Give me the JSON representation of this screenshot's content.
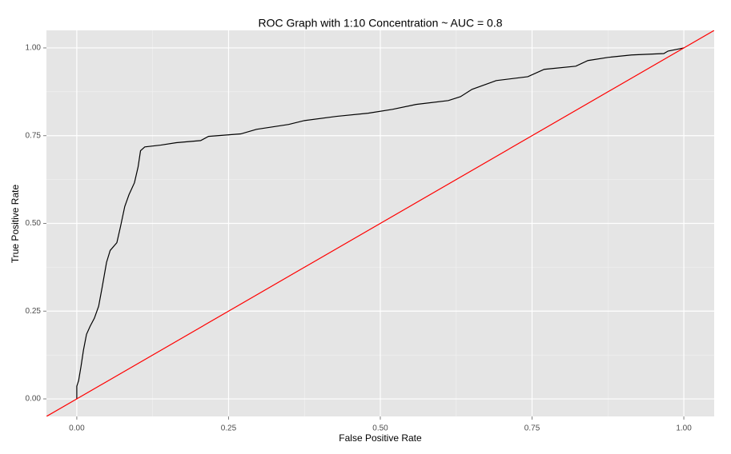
{
  "chart_data": {
    "type": "line",
    "title": "ROC Graph with 1:10 Concentration ~ AUC =  0.8",
    "x_label": "False Positive Rate",
    "y_label": "True Positive Rate",
    "xlim": [
      -0.05,
      1.05
    ],
    "ylim": [
      -0.05,
      1.05
    ],
    "xticks": [
      {
        "value": 0,
        "label": "0.00"
      },
      {
        "value": 0.25,
        "label": "0.25"
      },
      {
        "value": 0.5,
        "label": "0.50"
      },
      {
        "value": 0.75,
        "label": "0.75"
      },
      {
        "value": 1,
        "label": "1.00"
      }
    ],
    "yticks": [
      {
        "value": 0,
        "label": "0.00"
      },
      {
        "value": 0.25,
        "label": "0.25"
      },
      {
        "value": 0.5,
        "label": "0.50"
      },
      {
        "value": 0.75,
        "label": "0.75"
      },
      {
        "value": 1,
        "label": "1.00"
      }
    ],
    "grid": true,
    "minor_grid": true,
    "series": [
      {
        "color": "#000000",
        "x": [
          0,
          0,
          0.003,
          0.007,
          0.011,
          0.016,
          0.022,
          0.029,
          0.036,
          0.042,
          0.049,
          0.055,
          0.066,
          0.072,
          0.079,
          0.086,
          0.095,
          0.101,
          0.105,
          0.112,
          0.138,
          0.164,
          0.204,
          0.217,
          0.27,
          0.296,
          0.349,
          0.375,
          0.428,
          0.48,
          0.52,
          0.559,
          0.612,
          0.632,
          0.651,
          0.691,
          0.743,
          0.77,
          0.822,
          0.842,
          0.875,
          0.914,
          0.967,
          0.974,
          1
        ],
        "values": [
          0,
          0.036,
          0.052,
          0.093,
          0.139,
          0.184,
          0.207,
          0.23,
          0.264,
          0.32,
          0.389,
          0.423,
          0.445,
          0.491,
          0.548,
          0.582,
          0.616,
          0.661,
          0.707,
          0.718,
          0.723,
          0.73,
          0.736,
          0.748,
          0.755,
          0.768,
          0.782,
          0.793,
          0.805,
          0.814,
          0.825,
          0.839,
          0.85,
          0.861,
          0.882,
          0.907,
          0.918,
          0.939,
          0.948,
          0.964,
          0.973,
          0.98,
          0.984,
          0.991,
          1
        ]
      },
      {
        "color": "#ff0000",
        "x": [
          -0.05,
          1.05
        ],
        "values": [
          -0.05,
          1.05
        ]
      }
    ]
  }
}
